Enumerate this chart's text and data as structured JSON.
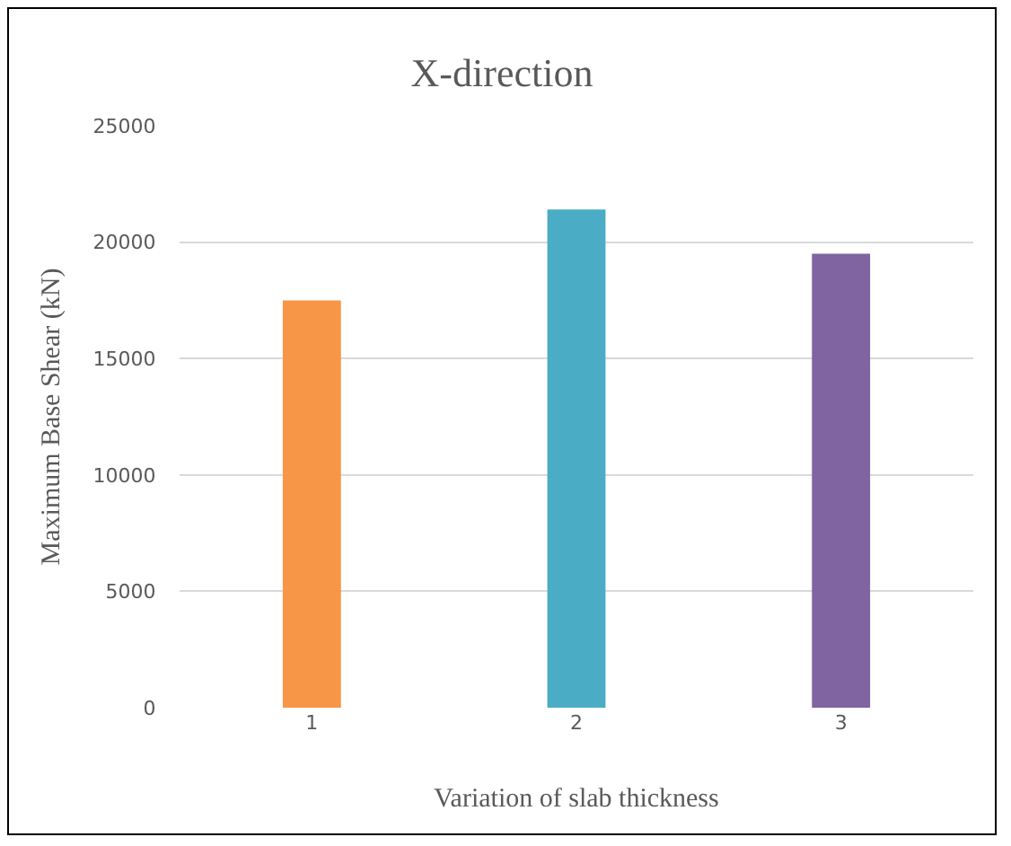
{
  "chart_data": {
    "type": "bar",
    "title": "X-direction",
    "xlabel": "Variation of slab thickness",
    "ylabel": "Maximum Base Shear (kN)",
    "categories": [
      "1",
      "2",
      "3"
    ],
    "values": [
      17500,
      21400,
      19500
    ],
    "colors": [
      "#f79646",
      "#4bacc6",
      "#8064a2"
    ],
    "ylim": [
      0,
      25000
    ],
    "yticks": [
      0,
      5000,
      10000,
      15000,
      20000,
      25000
    ],
    "grid": "y"
  }
}
